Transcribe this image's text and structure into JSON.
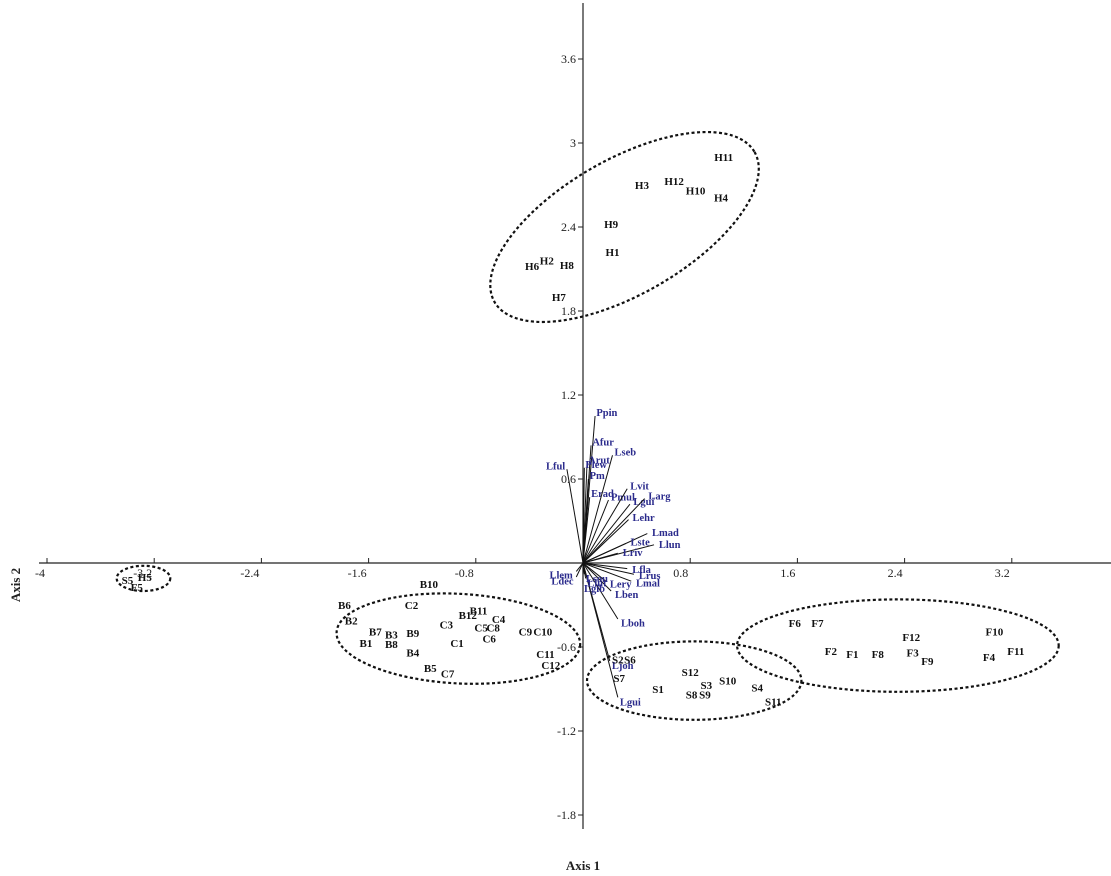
{
  "chart_data": {
    "type": "scatter",
    "title": "",
    "xlabel": "Axis 1",
    "ylabel": "Axis 2",
    "xlim": [
      -4.0,
      4.0
    ],
    "ylim": [
      -1.9,
      4.0
    ],
    "x_ticks": [
      {
        "v": -4.0,
        "label": "-4"
      },
      {
        "v": -3.2,
        "label": "-3.2"
      },
      {
        "v": -2.4,
        "label": "-2.4"
      },
      {
        "v": -1.6,
        "label": "-1.6"
      },
      {
        "v": -0.8,
        "label": "-0.8"
      },
      {
        "v": 0.8,
        "label": "0.8"
      },
      {
        "v": 1.6,
        "label": "1.6"
      },
      {
        "v": 2.4,
        "label": "2.4"
      },
      {
        "v": 3.2,
        "label": "3.2"
      }
    ],
    "y_ticks": [
      {
        "v": 3.6,
        "label": "3.6"
      },
      {
        "v": 3.0,
        "label": "3"
      },
      {
        "v": 2.4,
        "label": "2.4"
      },
      {
        "v": 1.8,
        "label": "1.8"
      },
      {
        "v": 1.2,
        "label": "1.2"
      },
      {
        "v": 0.6,
        "label": "0.6"
      },
      {
        "v": -0.6,
        "label": "-0.6"
      },
      {
        "v": -1.2,
        "label": "-1.2"
      },
      {
        "v": -1.8,
        "label": "-1.8"
      }
    ],
    "grid": false,
    "samples": [
      {
        "label": "H11",
        "x": 1.05,
        "y": 2.9
      },
      {
        "label": "H3",
        "x": 0.44,
        "y": 2.7
      },
      {
        "label": "H12",
        "x": 0.68,
        "y": 2.73
      },
      {
        "label": "H10",
        "x": 0.84,
        "y": 2.66
      },
      {
        "label": "H4",
        "x": 1.03,
        "y": 2.61
      },
      {
        "label": "H9",
        "x": 0.21,
        "y": 2.42
      },
      {
        "label": "H1",
        "x": 0.22,
        "y": 2.22
      },
      {
        "label": "H6",
        "x": -0.38,
        "y": 2.12
      },
      {
        "label": "H2",
        "x": -0.27,
        "y": 2.16
      },
      {
        "label": "H8",
        "x": -0.12,
        "y": 2.13
      },
      {
        "label": "H7",
        "x": -0.18,
        "y": 1.9
      },
      {
        "label": "S5",
        "x": -3.4,
        "y": -0.12
      },
      {
        "label": "H5",
        "x": -3.27,
        "y": -0.1
      },
      {
        "label": "F5",
        "x": -3.33,
        "y": -0.17
      },
      {
        "label": "B10",
        "x": -1.15,
        "y": -0.15
      },
      {
        "label": "B6",
        "x": -1.78,
        "y": -0.3
      },
      {
        "label": "C2",
        "x": -1.28,
        "y": -0.3
      },
      {
        "label": "B12",
        "x": -0.86,
        "y": -0.37
      },
      {
        "label": "B11",
        "x": -0.78,
        "y": -0.34
      },
      {
        "label": "C4",
        "x": -0.63,
        "y": -0.4
      },
      {
        "label": "B2",
        "x": -1.73,
        "y": -0.41
      },
      {
        "label": "C3",
        "x": -1.02,
        "y": -0.44
      },
      {
        "label": "C5",
        "x": -0.76,
        "y": -0.46
      },
      {
        "label": "C8",
        "x": -0.67,
        "y": -0.46
      },
      {
        "label": "B7",
        "x": -1.55,
        "y": -0.49
      },
      {
        "label": "B3",
        "x": -1.43,
        "y": -0.51
      },
      {
        "label": "B9",
        "x": -1.27,
        "y": -0.5
      },
      {
        "label": "C9",
        "x": -0.43,
        "y": -0.49
      },
      {
        "label": "C10",
        "x": -0.3,
        "y": -0.49
      },
      {
        "label": "B1",
        "x": -1.62,
        "y": -0.57
      },
      {
        "label": "B8",
        "x": -1.43,
        "y": -0.58
      },
      {
        "label": "C1",
        "x": -0.94,
        "y": -0.57
      },
      {
        "label": "C6",
        "x": -0.7,
        "y": -0.54
      },
      {
        "label": "B4",
        "x": -1.27,
        "y": -0.64
      },
      {
        "label": "C11",
        "x": -0.28,
        "y": -0.65
      },
      {
        "label": "S2",
        "x": 0.26,
        "y": -0.69
      },
      {
        "label": "S6",
        "x": 0.35,
        "y": -0.69
      },
      {
        "label": "C12",
        "x": -0.24,
        "y": -0.73
      },
      {
        "label": "B5",
        "x": -1.14,
        "y": -0.75
      },
      {
        "label": "C7",
        "x": -1.01,
        "y": -0.79
      },
      {
        "label": "S7",
        "x": 0.27,
        "y": -0.82
      },
      {
        "label": "S12",
        "x": 0.8,
        "y": -0.78
      },
      {
        "label": "S3",
        "x": 0.92,
        "y": -0.87
      },
      {
        "label": "S10",
        "x": 1.08,
        "y": -0.84
      },
      {
        "label": "S4",
        "x": 1.3,
        "y": -0.89
      },
      {
        "label": "S1",
        "x": 0.56,
        "y": -0.9
      },
      {
        "label": "S8",
        "x": 0.81,
        "y": -0.94
      },
      {
        "label": "S9",
        "x": 0.91,
        "y": -0.94
      },
      {
        "label": "S11",
        "x": 1.42,
        "y": -0.99
      },
      {
        "label": "F6",
        "x": 1.58,
        "y": -0.43
      },
      {
        "label": "F7",
        "x": 1.75,
        "y": -0.43
      },
      {
        "label": "F12",
        "x": 2.45,
        "y": -0.53
      },
      {
        "label": "F10",
        "x": 3.07,
        "y": -0.49
      },
      {
        "label": "F2",
        "x": 1.85,
        "y": -0.63
      },
      {
        "label": "F1",
        "x": 2.01,
        "y": -0.65
      },
      {
        "label": "F8",
        "x": 2.2,
        "y": -0.65
      },
      {
        "label": "F3",
        "x": 2.46,
        "y": -0.64
      },
      {
        "label": "F9",
        "x": 2.57,
        "y": -0.7
      },
      {
        "label": "F4",
        "x": 3.03,
        "y": -0.67
      },
      {
        "label": "F11",
        "x": 3.23,
        "y": -0.63
      }
    ],
    "vectors": [
      {
        "label": "Ppin",
        "x": 0.09,
        "y": 1.05
      },
      {
        "label": "Afur",
        "x": 0.06,
        "y": 0.84
      },
      {
        "label": "Arut",
        "x": 0.03,
        "y": 0.71
      },
      {
        "label": "Plew",
        "x": 0.01,
        "y": 0.68
      },
      {
        "label": "Pm",
        "x": 0.04,
        "y": 0.6
      },
      {
        "label": "Erad",
        "x": 0.05,
        "y": 0.47
      },
      {
        "label": "Lful",
        "x": -0.12,
        "y": 0.67
      },
      {
        "label": "Lseb",
        "x": 0.22,
        "y": 0.77
      },
      {
        "label": "Pmul",
        "x": 0.19,
        "y": 0.45
      },
      {
        "label": "Lvit",
        "x": 0.33,
        "y": 0.53
      },
      {
        "label": "Lgui",
        "x": 0.35,
        "y": 0.42
      },
      {
        "label": "Larg",
        "x": 0.46,
        "y": 0.46
      },
      {
        "label": "Lehr",
        "x": 0.34,
        "y": 0.31
      },
      {
        "label": "Lmad",
        "x": 0.48,
        "y": 0.21
      },
      {
        "label": "Llun",
        "x": 0.53,
        "y": 0.13
      },
      {
        "label": "Lste",
        "x": 0.32,
        "y": 0.14
      },
      {
        "label": "Lriv",
        "x": 0.26,
        "y": 0.07
      },
      {
        "label": "Lfla",
        "x": 0.33,
        "y": -0.04
      },
      {
        "label": "Lrus",
        "x": 0.38,
        "y": -0.08
      },
      {
        "label": "Lmal",
        "x": 0.36,
        "y": -0.13
      },
      {
        "label": "Lery",
        "x": 0.17,
        "y": -0.13
      },
      {
        "label": "Lben",
        "x": 0.21,
        "y": -0.2
      },
      {
        "label": "Lboh",
        "x": 0.26,
        "y": -0.4
      },
      {
        "label": "Ljoh",
        "x": 0.2,
        "y": -0.7
      },
      {
        "label": "Lgui",
        "x": 0.26,
        "y": -0.96
      },
      {
        "label": "Llem",
        "x": -0.05,
        "y": -0.06
      },
      {
        "label": "Lsou",
        "x": 0.01,
        "y": -0.08
      },
      {
        "label": "Ldec",
        "x": -0.05,
        "y": -0.1
      },
      {
        "label": "Llut",
        "x": 0.02,
        "y": -0.11
      },
      {
        "label": "Lgib",
        "x": 0.0,
        "y": -0.15
      }
    ],
    "groups": [
      {
        "cx": 0.31,
        "cy": 2.4,
        "rx": 1.12,
        "ry": 0.48,
        "angle_deg": -30
      },
      {
        "cx": -3.28,
        "cy": -0.11,
        "rx": 0.2,
        "ry": 0.09,
        "angle_deg": 0
      },
      {
        "cx": -0.93,
        "cy": -0.54,
        "rx": 0.91,
        "ry": 0.32,
        "angle_deg": 3
      },
      {
        "cx": 0.83,
        "cy": -0.84,
        "rx": 0.8,
        "ry": 0.28,
        "angle_deg": 0
      },
      {
        "cx": 2.35,
        "cy": -0.59,
        "rx": 1.2,
        "ry": 0.33,
        "angle_deg": 0
      }
    ]
  }
}
